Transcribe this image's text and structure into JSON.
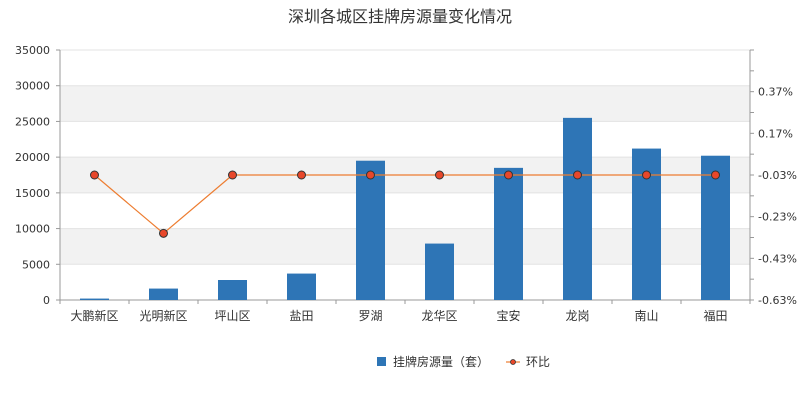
{
  "chart_data": {
    "type": "bar",
    "title": "深圳各城区挂牌房源量变化情况",
    "categories": [
      "大鹏新区",
      "光明新区",
      "坪山区",
      "盐田",
      "罗湖",
      "龙华区",
      "宝安",
      "龙岗",
      "南山",
      "福田"
    ],
    "series": [
      {
        "name": "挂牌房源量（套）",
        "type": "bar",
        "axis": "left",
        "color": "#2E75B6",
        "values": [
          200,
          1600,
          2800,
          3700,
          19500,
          7900,
          18500,
          25500,
          21200,
          20200
        ]
      },
      {
        "name": "环比",
        "type": "line",
        "axis": "right",
        "color": "#ED7D31",
        "marker_color": "#E8472A",
        "values": [
          -0.03,
          -0.31,
          -0.03,
          -0.03,
          -0.03,
          -0.03,
          -0.03,
          -0.03,
          -0.03,
          -0.03
        ]
      }
    ],
    "y_left": {
      "ylim": [
        0,
        35000
      ],
      "ticks": [
        "0",
        "5000",
        "10000",
        "15000",
        "20000",
        "25000",
        "30000",
        "35000"
      ]
    },
    "y_right": {
      "ylim": [
        -0.63,
        0.57
      ],
      "tick_values": [
        -0.63,
        -0.43,
        -0.23,
        -0.03,
        0.17,
        0.37
      ],
      "ticks": [
        "-0.63%",
        "-0.43%",
        "-0.23%",
        "-0.03%",
        "0.17%",
        "0.37%"
      ]
    },
    "grid": "horizontal-bands",
    "legend": "bottom-center"
  }
}
